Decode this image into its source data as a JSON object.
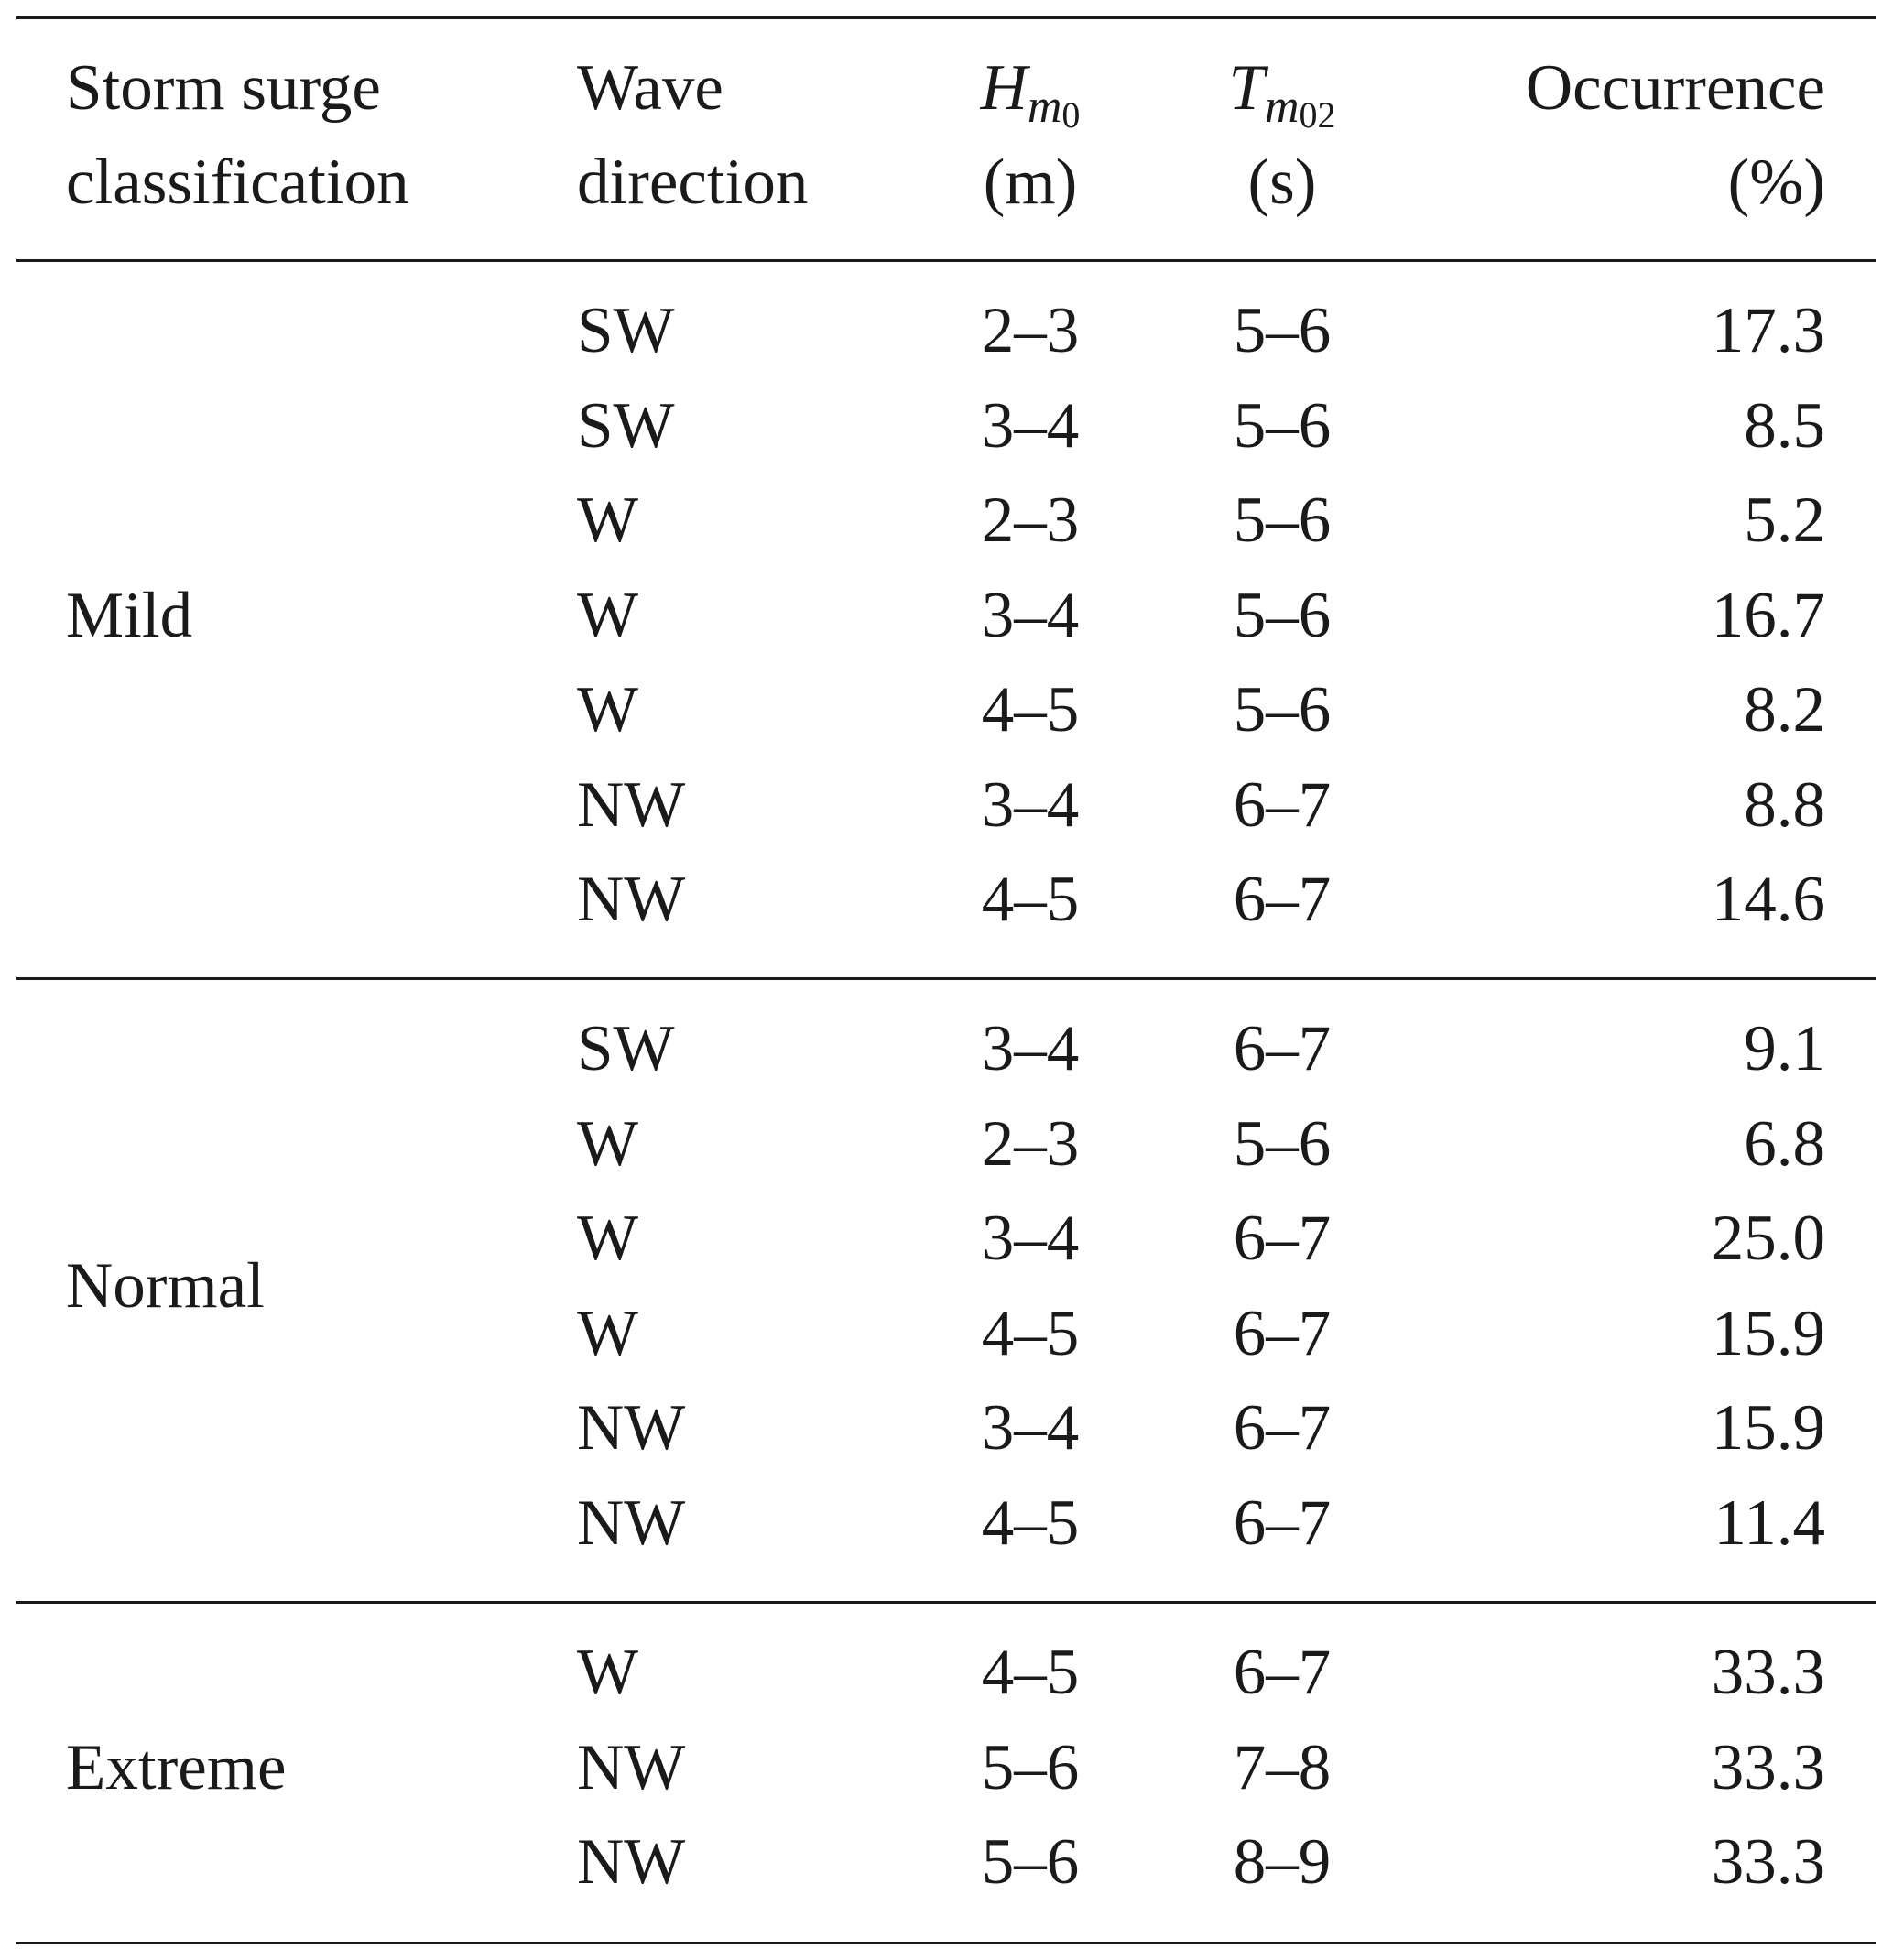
{
  "header": {
    "col1_line1": "Storm surge",
    "col1_line2": "classification",
    "col2_line1": "Wave",
    "col2_line2": "direction",
    "col3_symbol": "H",
    "col3_sub": "m",
    "col3_subsub": "0",
    "col3_unit": "(m)",
    "col4_symbol": "T",
    "col4_sub": "m",
    "col4_subsub": "02",
    "col4_unit": "(s)",
    "col5_line1": "Occurrence",
    "col5_line2": "(%)"
  },
  "groups": [
    {
      "label": "Mild",
      "rows": [
        {
          "dir": "SW",
          "h": "2–3",
          "t": "5–6",
          "occ": "17.3"
        },
        {
          "dir": "SW",
          "h": "3–4",
          "t": "5–6",
          "occ": "8.5"
        },
        {
          "dir": "W",
          "h": "2–3",
          "t": "5–6",
          "occ": "5.2"
        },
        {
          "dir": "W",
          "h": "3–4",
          "t": "5–6",
          "occ": "16.7"
        },
        {
          "dir": "W",
          "h": "4–5",
          "t": "5–6",
          "occ": "8.2"
        },
        {
          "dir": "NW",
          "h": "3–4",
          "t": "6–7",
          "occ": "8.8"
        },
        {
          "dir": "NW",
          "h": "4–5",
          "t": "6–7",
          "occ": "14.6"
        }
      ]
    },
    {
      "label": "Normal",
      "rows": [
        {
          "dir": "SW",
          "h": "3–4",
          "t": "6–7",
          "occ": "9.1"
        },
        {
          "dir": "W",
          "h": "2–3",
          "t": "5–6",
          "occ": "6.8"
        },
        {
          "dir": "W",
          "h": "3–4",
          "t": "6–7",
          "occ": "25.0"
        },
        {
          "dir": "W",
          "h": "4–5",
          "t": "6–7",
          "occ": "15.9"
        },
        {
          "dir": "NW",
          "h": "3–4",
          "t": "6–7",
          "occ": "15.9"
        },
        {
          "dir": "NW",
          "h": "4–5",
          "t": "6–7",
          "occ": "11.4"
        }
      ]
    },
    {
      "label": "Extreme",
      "rows": [
        {
          "dir": "W",
          "h": "4–5",
          "t": "6–7",
          "occ": "33.3"
        },
        {
          "dir": "NW",
          "h": "5–6",
          "t": "7–8",
          "occ": "33.3"
        },
        {
          "dir": "NW",
          "h": "5–6",
          "t": "8–9",
          "occ": "33.3"
        }
      ]
    }
  ]
}
